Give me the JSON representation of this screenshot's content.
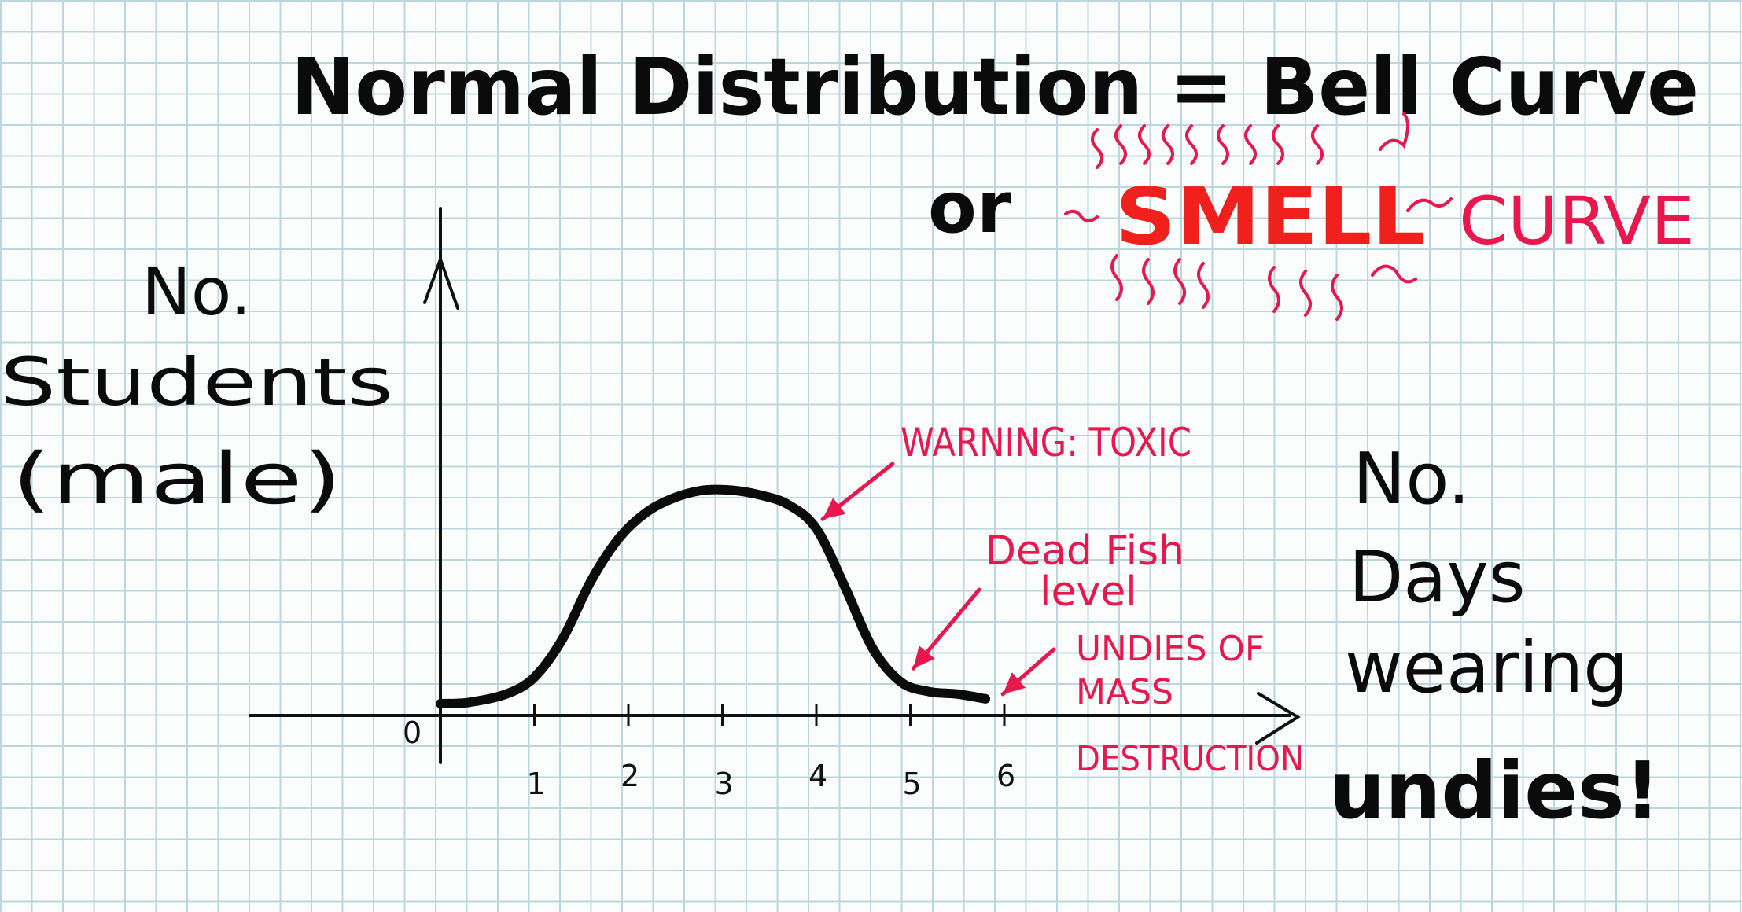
{
  "chart_data": {
    "type": "line",
    "title": "Normal Distribution = Bell Curve",
    "subtitle": {
      "prefix": "or",
      "highlight": "SMELL",
      "suffix": "CURVE"
    },
    "ylabel": [
      "No.",
      "Students",
      "(male)"
    ],
    "xlabel": [
      "No.",
      "Days",
      "wearing",
      "undies!"
    ],
    "origin_label": "0",
    "categories": [
      "1",
      "2",
      "3",
      "4",
      "5",
      "6"
    ],
    "xlim": [
      0,
      6.6
    ],
    "ylim": [
      0,
      10
    ],
    "grid": true,
    "series": [
      {
        "x": [
          0,
          0.3,
          0.7,
          1.0,
          1.3,
          1.6,
          1.9,
          2.2,
          2.5,
          2.8,
          3.1,
          3.4,
          3.7,
          4.0,
          4.3,
          4.6,
          4.9,
          5.2,
          5.5,
          5.8
        ],
        "y": [
          0.1,
          0.15,
          0.5,
          1.2,
          2.8,
          5.2,
          7.0,
          8.1,
          8.7,
          9.0,
          9.0,
          8.8,
          8.4,
          7.4,
          5.0,
          2.4,
          1.0,
          0.6,
          0.5,
          0.3
        ]
      }
    ],
    "annotations": [
      {
        "text": "WARNING: TOXIC",
        "x": 4.0,
        "y": 7.4,
        "color": "#e8174d"
      },
      {
        "text": "Dead Fish level",
        "x": 5.2,
        "y": 1.4,
        "color": "#e8174d"
      },
      {
        "text": "UNDIES OF MASS DESTRUCTION",
        "x": 5.8,
        "y": 0.3,
        "color": "#e8174d"
      }
    ],
    "colors": {
      "curve": "#0b0b0b",
      "annotation": "#e8174d",
      "smell": "#f0201c",
      "grid": "#bcd6de"
    }
  }
}
